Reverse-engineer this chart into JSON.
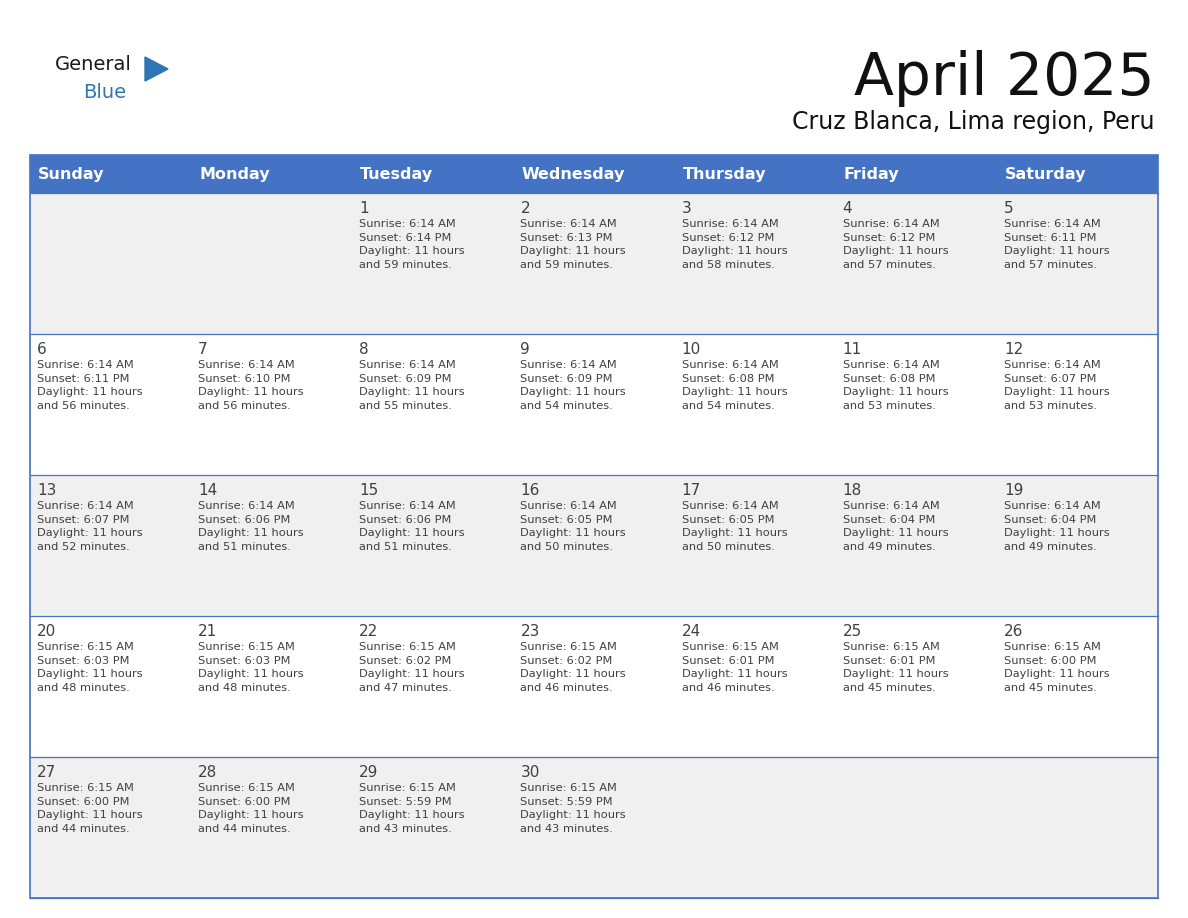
{
  "title": "April 2025",
  "subtitle": "Cruz Blanca, Lima region, Peru",
  "header_bg": "#4472C4",
  "header_text": "#FFFFFF",
  "row_bg": [
    "#F0F0F0",
    "#FFFFFF",
    "#F0F0F0",
    "#FFFFFF",
    "#F0F0F0"
  ],
  "border_color": "#4472C4",
  "text_color": "#404040",
  "logo_general_color": "#1a1a1a",
  "logo_blue_color": "#2E75B6",
  "logo_triangle_color": "#2E75B6",
  "days_of_week": [
    "Sunday",
    "Monday",
    "Tuesday",
    "Wednesday",
    "Thursday",
    "Friday",
    "Saturday"
  ],
  "weeks": [
    [
      {
        "day": "",
        "info": ""
      },
      {
        "day": "",
        "info": ""
      },
      {
        "day": "1",
        "info": "Sunrise: 6:14 AM\nSunset: 6:14 PM\nDaylight: 11 hours\nand 59 minutes."
      },
      {
        "day": "2",
        "info": "Sunrise: 6:14 AM\nSunset: 6:13 PM\nDaylight: 11 hours\nand 59 minutes."
      },
      {
        "day": "3",
        "info": "Sunrise: 6:14 AM\nSunset: 6:12 PM\nDaylight: 11 hours\nand 58 minutes."
      },
      {
        "day": "4",
        "info": "Sunrise: 6:14 AM\nSunset: 6:12 PM\nDaylight: 11 hours\nand 57 minutes."
      },
      {
        "day": "5",
        "info": "Sunrise: 6:14 AM\nSunset: 6:11 PM\nDaylight: 11 hours\nand 57 minutes."
      }
    ],
    [
      {
        "day": "6",
        "info": "Sunrise: 6:14 AM\nSunset: 6:11 PM\nDaylight: 11 hours\nand 56 minutes."
      },
      {
        "day": "7",
        "info": "Sunrise: 6:14 AM\nSunset: 6:10 PM\nDaylight: 11 hours\nand 56 minutes."
      },
      {
        "day": "8",
        "info": "Sunrise: 6:14 AM\nSunset: 6:09 PM\nDaylight: 11 hours\nand 55 minutes."
      },
      {
        "day": "9",
        "info": "Sunrise: 6:14 AM\nSunset: 6:09 PM\nDaylight: 11 hours\nand 54 minutes."
      },
      {
        "day": "10",
        "info": "Sunrise: 6:14 AM\nSunset: 6:08 PM\nDaylight: 11 hours\nand 54 minutes."
      },
      {
        "day": "11",
        "info": "Sunrise: 6:14 AM\nSunset: 6:08 PM\nDaylight: 11 hours\nand 53 minutes."
      },
      {
        "day": "12",
        "info": "Sunrise: 6:14 AM\nSunset: 6:07 PM\nDaylight: 11 hours\nand 53 minutes."
      }
    ],
    [
      {
        "day": "13",
        "info": "Sunrise: 6:14 AM\nSunset: 6:07 PM\nDaylight: 11 hours\nand 52 minutes."
      },
      {
        "day": "14",
        "info": "Sunrise: 6:14 AM\nSunset: 6:06 PM\nDaylight: 11 hours\nand 51 minutes."
      },
      {
        "day": "15",
        "info": "Sunrise: 6:14 AM\nSunset: 6:06 PM\nDaylight: 11 hours\nand 51 minutes."
      },
      {
        "day": "16",
        "info": "Sunrise: 6:14 AM\nSunset: 6:05 PM\nDaylight: 11 hours\nand 50 minutes."
      },
      {
        "day": "17",
        "info": "Sunrise: 6:14 AM\nSunset: 6:05 PM\nDaylight: 11 hours\nand 50 minutes."
      },
      {
        "day": "18",
        "info": "Sunrise: 6:14 AM\nSunset: 6:04 PM\nDaylight: 11 hours\nand 49 minutes."
      },
      {
        "day": "19",
        "info": "Sunrise: 6:14 AM\nSunset: 6:04 PM\nDaylight: 11 hours\nand 49 minutes."
      }
    ],
    [
      {
        "day": "20",
        "info": "Sunrise: 6:15 AM\nSunset: 6:03 PM\nDaylight: 11 hours\nand 48 minutes."
      },
      {
        "day": "21",
        "info": "Sunrise: 6:15 AM\nSunset: 6:03 PM\nDaylight: 11 hours\nand 48 minutes."
      },
      {
        "day": "22",
        "info": "Sunrise: 6:15 AM\nSunset: 6:02 PM\nDaylight: 11 hours\nand 47 minutes."
      },
      {
        "day": "23",
        "info": "Sunrise: 6:15 AM\nSunset: 6:02 PM\nDaylight: 11 hours\nand 46 minutes."
      },
      {
        "day": "24",
        "info": "Sunrise: 6:15 AM\nSunset: 6:01 PM\nDaylight: 11 hours\nand 46 minutes."
      },
      {
        "day": "25",
        "info": "Sunrise: 6:15 AM\nSunset: 6:01 PM\nDaylight: 11 hours\nand 45 minutes."
      },
      {
        "day": "26",
        "info": "Sunrise: 6:15 AM\nSunset: 6:00 PM\nDaylight: 11 hours\nand 45 minutes."
      }
    ],
    [
      {
        "day": "27",
        "info": "Sunrise: 6:15 AM\nSunset: 6:00 PM\nDaylight: 11 hours\nand 44 minutes."
      },
      {
        "day": "28",
        "info": "Sunrise: 6:15 AM\nSunset: 6:00 PM\nDaylight: 11 hours\nand 44 minutes."
      },
      {
        "day": "29",
        "info": "Sunrise: 6:15 AM\nSunset: 5:59 PM\nDaylight: 11 hours\nand 43 minutes."
      },
      {
        "day": "30",
        "info": "Sunrise: 6:15 AM\nSunset: 5:59 PM\nDaylight: 11 hours\nand 43 minutes."
      },
      {
        "day": "",
        "info": ""
      },
      {
        "day": "",
        "info": ""
      },
      {
        "day": "",
        "info": ""
      }
    ]
  ]
}
